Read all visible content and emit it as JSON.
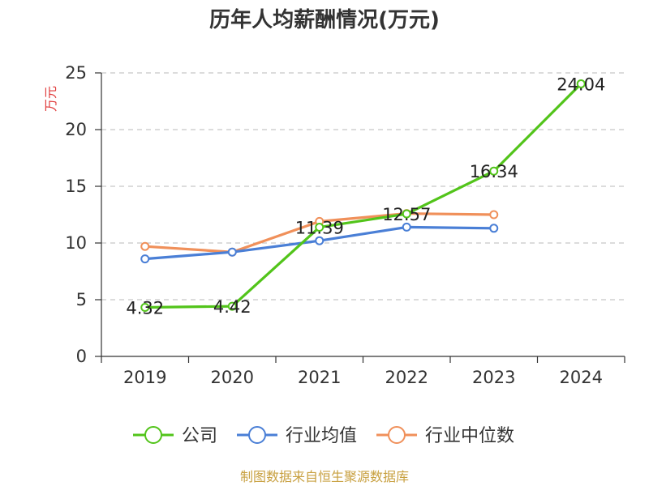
{
  "chart_data": {
    "type": "line",
    "title": "历年人均薪酬情况(万元)",
    "ylabel": "万元",
    "xlabel": "",
    "categories": [
      "2019",
      "2020",
      "2021",
      "2022",
      "2023",
      "2024"
    ],
    "ylim": [
      0,
      25
    ],
    "yticks": [
      0,
      5,
      10,
      15,
      20,
      25
    ],
    "grid": true,
    "legend_position": "bottom",
    "series": [
      {
        "name": "公司",
        "color": "#52c41a",
        "values": [
          4.32,
          4.42,
          11.39,
          12.57,
          16.34,
          24.04
        ],
        "data_labels": [
          "4.32",
          "4.42",
          "11.39",
          "12.57",
          "16.34",
          "24.04"
        ]
      },
      {
        "name": "行业均值",
        "color": "#4a7fd6",
        "values": [
          8.6,
          9.2,
          10.2,
          11.4,
          11.3,
          null
        ],
        "data_labels": []
      },
      {
        "name": "行业中位数",
        "color": "#f0905a",
        "values": [
          9.7,
          9.2,
          11.9,
          12.6,
          12.5,
          null
        ],
        "data_labels": []
      }
    ]
  },
  "source": "制图数据来自恒生聚源数据库"
}
